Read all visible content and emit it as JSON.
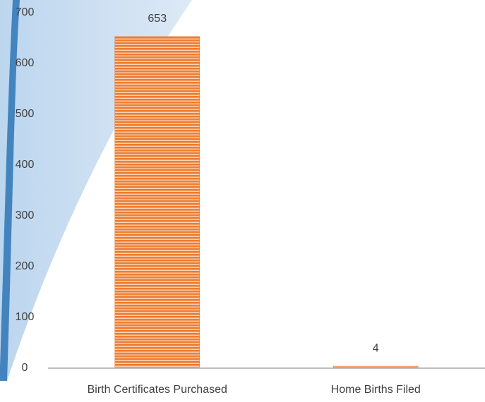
{
  "chart_data": {
    "type": "bar",
    "categories": [
      "Birth Certificates Purchased",
      "Home Births Filed"
    ],
    "values": [
      653,
      4
    ],
    "color": "#ed7d31",
    "ylim": [
      0,
      700
    ],
    "yticks": [
      0,
      100,
      200,
      300,
      400,
      500,
      600,
      700
    ],
    "grid": false
  }
}
